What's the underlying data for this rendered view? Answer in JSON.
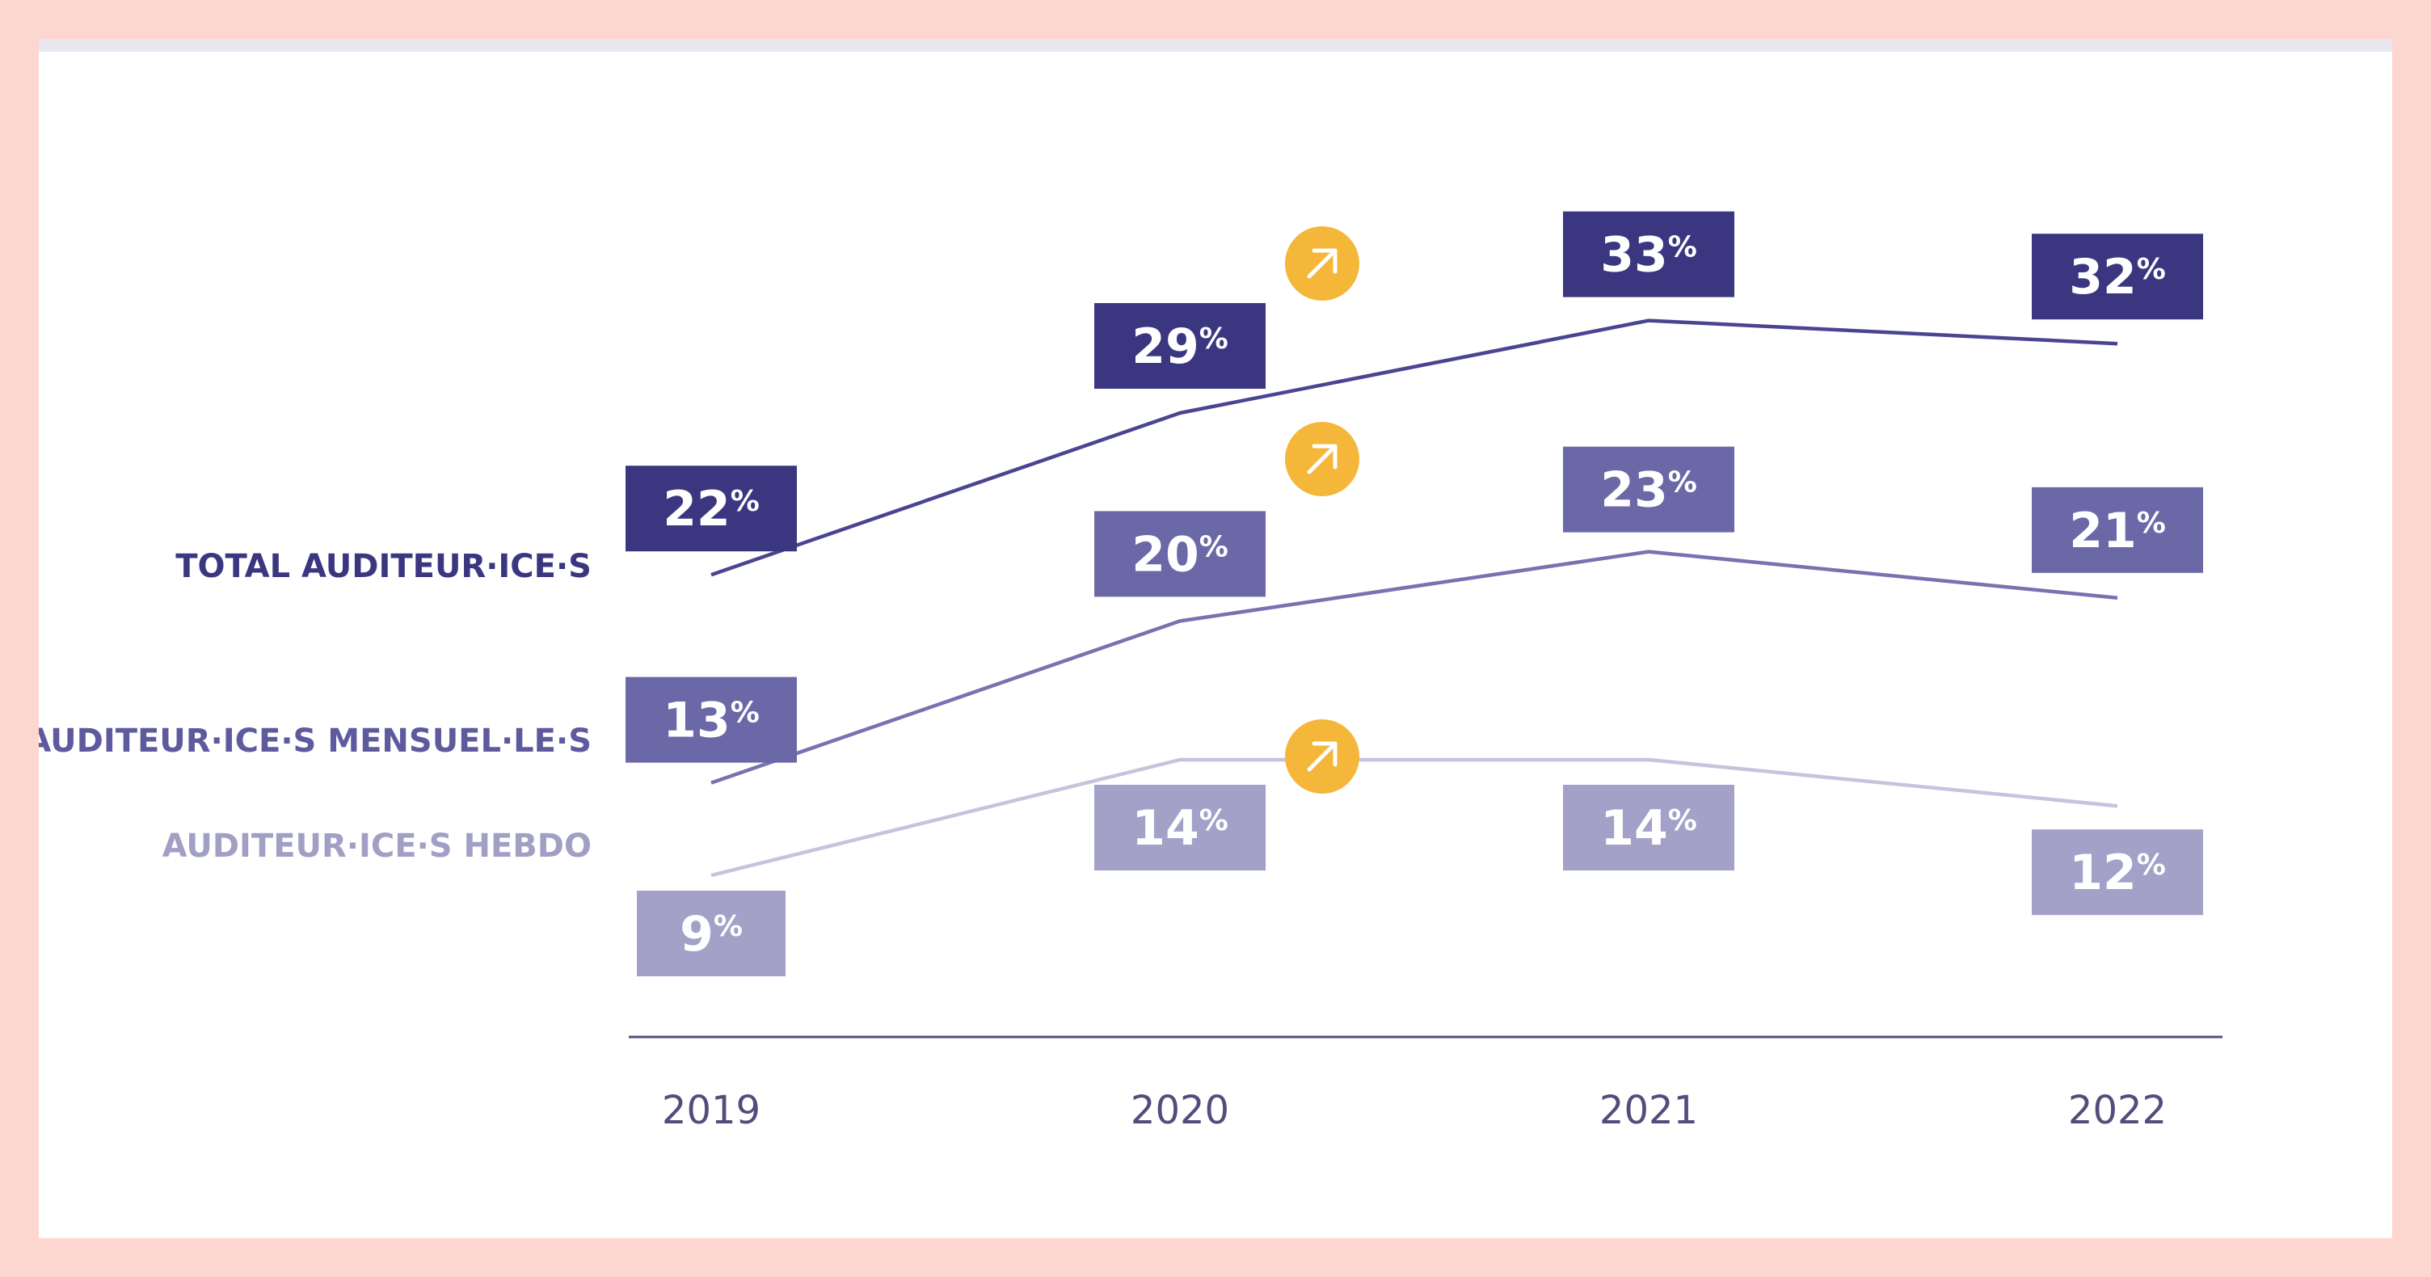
{
  "chart_data": {
    "type": "line",
    "categories": [
      "2019",
      "2020",
      "2021",
      "2022"
    ],
    "series": [
      {
        "name": "TOTAL AUDITEUR·ICE·S",
        "values": [
          22,
          29,
          33,
          32
        ],
        "color": "#3b3680",
        "line_color": "#4a4590",
        "label_color": "#3b3680",
        "value_labels": [
          "22%",
          "29%",
          "33%",
          "32%"
        ]
      },
      {
        "name": "AUDITEUR·ICE·S MENSUEL·LE·S",
        "values": [
          13,
          20,
          23,
          21
        ],
        "color": "#6b68a8",
        "line_color": "#7673b0",
        "label_color": "#5e5a9e",
        "value_labels": [
          "13%",
          "20%",
          "23%",
          "21%"
        ]
      },
      {
        "name": "AUDITEUR·ICE·S HEBDO",
        "values": [
          9,
          14,
          14,
          12
        ],
        "color": "#a3a1c8",
        "line_color": "#c6c4dd",
        "label_color": "#a19fc4",
        "value_labels": [
          "9%",
          "14%",
          "14%",
          "12%"
        ]
      }
    ],
    "trend_markers": [
      {
        "series": 0,
        "category": "2020",
        "icon": "arrow-up-right-icon",
        "color": "#f4b73a"
      },
      {
        "series": 1,
        "category": "2020",
        "icon": "arrow-up-right-icon",
        "color": "#f4b73a"
      },
      {
        "series": 2,
        "category": "2020",
        "icon": "arrow-up-right-icon",
        "color": "#f4b73a"
      }
    ],
    "axis_color": "#524d7c",
    "grid": false
  }
}
